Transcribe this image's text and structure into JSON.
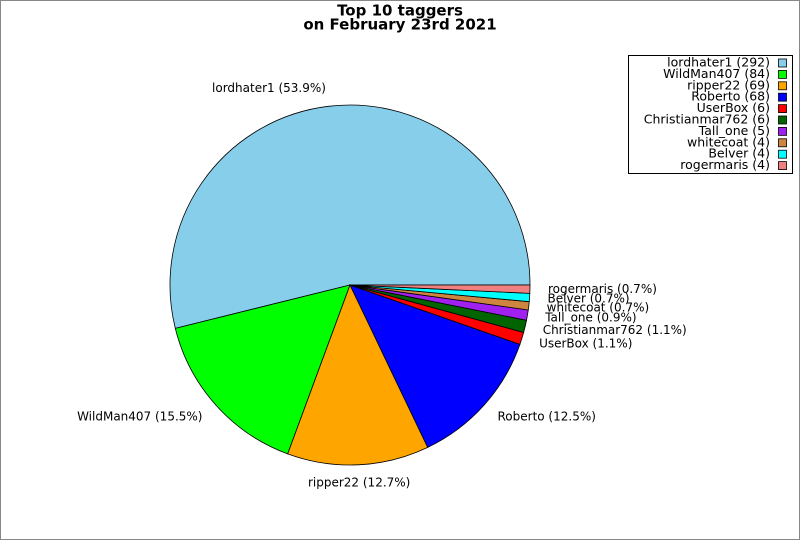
{
  "chart_data": {
    "type": "pie",
    "title": [
      "Top 10 taggers",
      "on February 23rd 2021"
    ],
    "categories": [
      "lordhater1",
      "WildMan407",
      "ripper22",
      "Roberto",
      "UserBox",
      "Christianmar762",
      "Tall_one",
      "whitecoat",
      "Belver",
      "rogermaris"
    ],
    "values": [
      292,
      84,
      69,
      68,
      6,
      6,
      5,
      4,
      4,
      4
    ],
    "slice_labels": [
      "lordhater1 (53.9%)",
      "WildMan407 (15.5%)",
      "ripper22 (12.7%)",
      "Roberto (12.5%)",
      "UserBox (1.1%)",
      "Christianmar762 (1.1%)",
      "Tall_one (0.9%)",
      "whitecoat (0.7%)",
      "Belver (0.7%)",
      "rogermaris (0.7%)"
    ],
    "legend_labels": [
      "lordhater1 (292)",
      "WildMan407 (84)",
      "ripper22 (69)",
      "Roberto (68)",
      "UserBox (6)",
      "Christianmar762 (6)",
      "Tall_one (5)",
      "whitecoat (4)",
      "Belver (4)",
      "rogermaris (4)"
    ],
    "colors": [
      "#87ceeb",
      "#00ff00",
      "#ffa500",
      "#0000ff",
      "#ff0000",
      "#006400",
      "#a020f0",
      "#cd853f",
      "#00ffff",
      "#f08080"
    ],
    "legend": "upper right"
  }
}
